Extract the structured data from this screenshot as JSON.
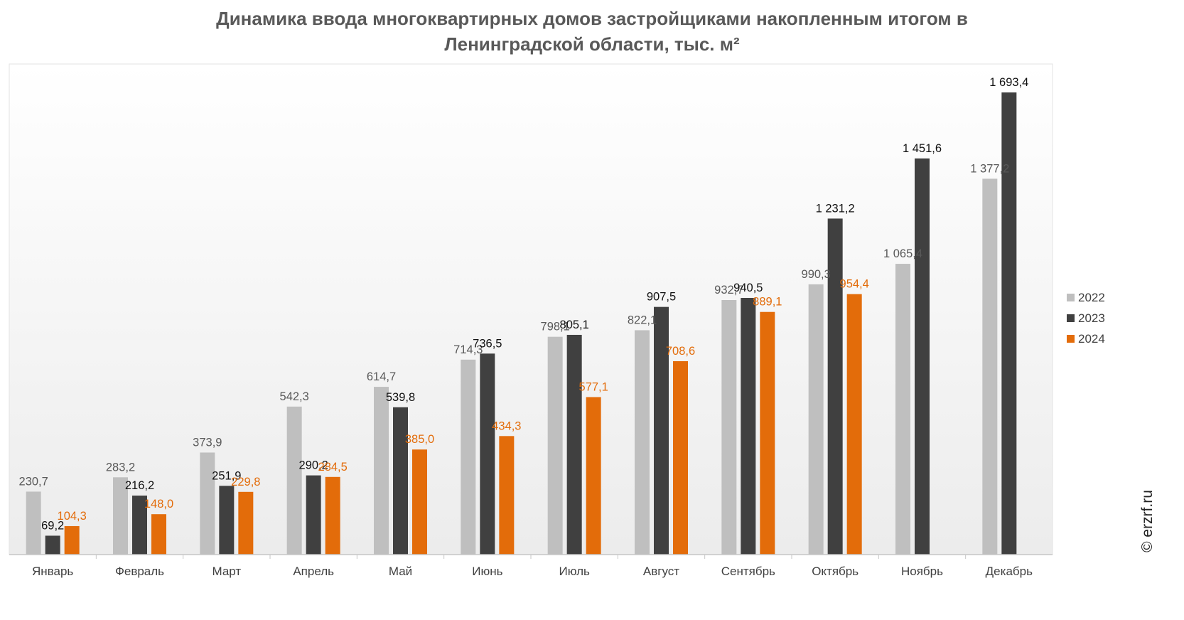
{
  "chart_data": {
    "type": "bar",
    "title": "Динамика ввода многоквартирных домов застройщиками накопленным итогом в Ленинградской области, тыс. м²",
    "categories": [
      "Январь",
      "Февраль",
      "Март",
      "Апрель",
      "Май",
      "Июнь",
      "Июль",
      "Август",
      "Сентябрь",
      "Октябрь",
      "Ноябрь",
      "Декабрь"
    ],
    "series": [
      {
        "name": "2022",
        "color": "#bfbfbf",
        "label_color": "#595959",
        "values": [
          230.7,
          283.2,
          373.9,
          542.3,
          614.7,
          714.3,
          798.1,
          822.1,
          932.7,
          990.3,
          1065.4,
          1377.2
        ],
        "labels": [
          "230,7",
          "283,2",
          "373,9",
          "542,3",
          "614,7",
          "714,3",
          "798,1",
          "822,1",
          "932,7",
          "990,3",
          "1 065,4",
          "1 377,2"
        ]
      },
      {
        "name": "2023",
        "color": "#404040",
        "label_color": "#111111",
        "values": [
          69.2,
          216.2,
          251.9,
          290.2,
          539.8,
          736.5,
          805.1,
          907.5,
          940.5,
          1231.2,
          1451.6,
          1693.4
        ],
        "labels": [
          "69,2",
          "216,2",
          "251,9",
          "290,2",
          "539,8",
          "736,5",
          "805,1",
          "907,5",
          "940,5",
          "1 231,2",
          "1 451,6",
          "1 693,4"
        ]
      },
      {
        "name": "2024",
        "color": "#e36c0a",
        "label_color": "#e36c0a",
        "values": [
          104.3,
          148.0,
          229.8,
          284.5,
          385.0,
          434.3,
          577.1,
          708.6,
          889.1,
          954.4,
          null,
          null
        ],
        "labels": [
          "104,3",
          "148,0",
          "229,8",
          "284,5",
          "385,0",
          "434,3",
          "577,1",
          "708,6",
          "889,1",
          "954,4",
          null,
          null
        ]
      }
    ],
    "ylim": [
      0,
      1760
    ],
    "grid": false,
    "legend_position": "right"
  },
  "watermark": "© erzrf.ru"
}
